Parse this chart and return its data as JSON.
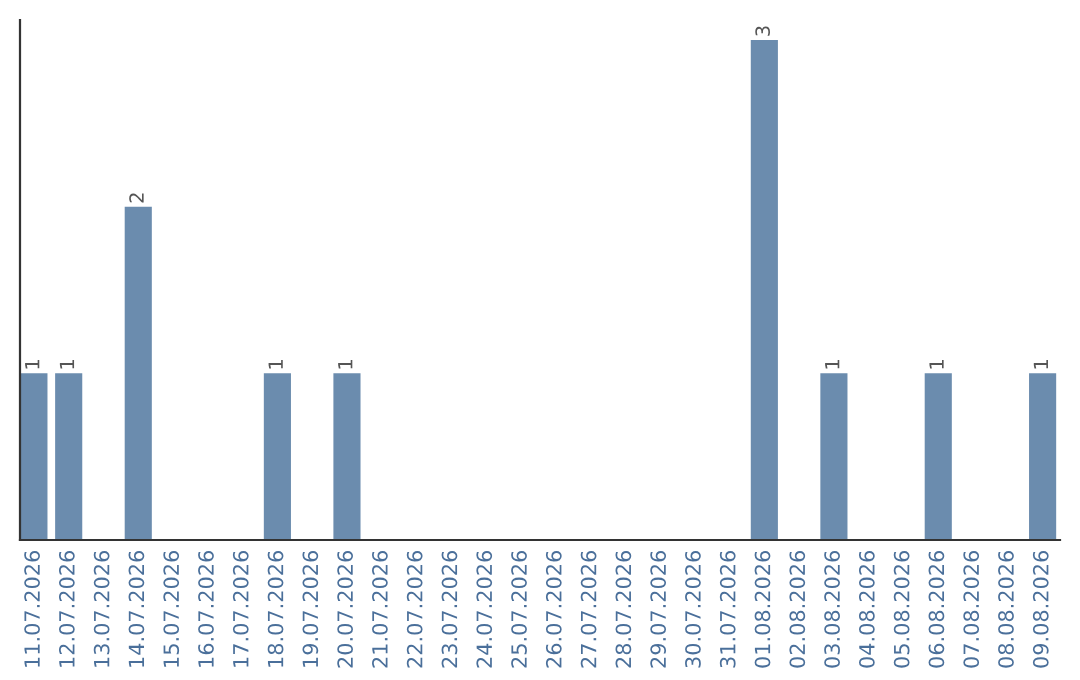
{
  "chart_data": {
    "type": "bar",
    "categories": [
      "11.07.2026",
      "12.07.2026",
      "13.07.2026",
      "14.07.2026",
      "15.07.2026",
      "16.07.2026",
      "17.07.2026",
      "18.07.2026",
      "19.07.2026",
      "20.07.2026",
      "21.07.2026",
      "22.07.2026",
      "23.07.2026",
      "24.07.2026",
      "25.07.2026",
      "26.07.2026",
      "27.07.2026",
      "28.07.2026",
      "29.07.2026",
      "30.07.2026",
      "31.07.2026",
      "01.08.2026",
      "02.08.2026",
      "03.08.2026",
      "04.08.2026",
      "05.08.2026",
      "06.08.2026",
      "07.08.2026",
      "08.08.2026",
      "09.08.2026"
    ],
    "values": [
      1,
      1,
      0,
      2,
      0,
      0,
      0,
      1,
      0,
      1,
      0,
      0,
      0,
      0,
      0,
      0,
      0,
      0,
      0,
      0,
      0,
      3,
      0,
      1,
      0,
      0,
      1,
      0,
      0,
      1
    ],
    "value_labels": [
      "1",
      "1",
      null,
      "2",
      null,
      null,
      null,
      "1",
      null,
      "1",
      null,
      null,
      null,
      null,
      null,
      null,
      null,
      null,
      null,
      null,
      null,
      "3",
      null,
      "1",
      null,
      null,
      "1",
      null,
      null,
      "1"
    ],
    "color": "#6b8cae",
    "tick_labels": "x",
    "grid": false,
    "legend": false
  }
}
